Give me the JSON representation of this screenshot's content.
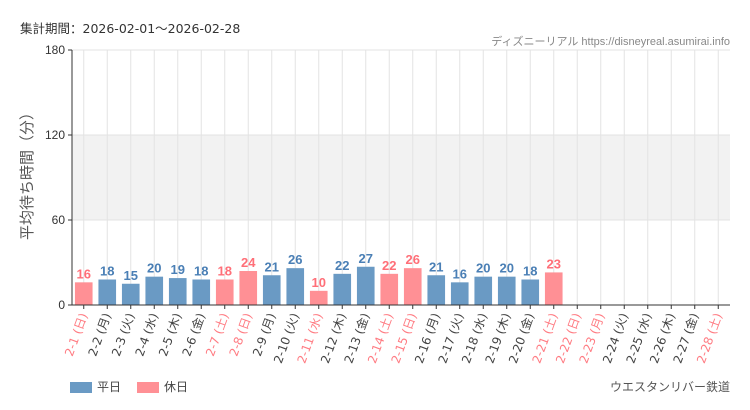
{
  "header": {
    "period": "集計期間：2026-02-01～2026-02-28",
    "credit": "ディズニーリアル https://disneyreal.asumirai.info"
  },
  "attraction": "ウエスタンリバー鉄道",
  "colors": {
    "weekday": "#6a9ac4",
    "holiday": "#ff9095",
    "weekday_text": "#4a7fb5",
    "holiday_text": "#ff6f78",
    "holiday_label": "#ff7b82",
    "band": "#f2f2f2"
  },
  "chart_data": {
    "type": "bar",
    "ylabel": "平均待ち時間（分）",
    "ylim": [
      0,
      180
    ],
    "yticks": [
      0,
      60,
      120,
      180
    ],
    "shaded_band": [
      60,
      120
    ],
    "grid": true,
    "legend": {
      "placement": "bottom-left",
      "entries": [
        {
          "name": "平日",
          "key": "weekday"
        },
        {
          "name": "休日",
          "key": "holiday"
        }
      ]
    },
    "categories": [
      "2-1 (日)",
      "2-2 (月)",
      "2-3 (火)",
      "2-4 (水)",
      "2-5 (木)",
      "2-6 (金)",
      "2-7 (土)",
      "2-8 (日)",
      "2-9 (月)",
      "2-10 (火)",
      "2-11 (水)",
      "2-12 (木)",
      "2-13 (金)",
      "2-14 (土)",
      "2-15 (日)",
      "2-16 (月)",
      "2-17 (火)",
      "2-18 (水)",
      "2-19 (木)",
      "2-20 (金)",
      "2-21 (土)",
      "2-22 (日)",
      "2-23 (月)",
      "2-24 (火)",
      "2-25 (水)",
      "2-26 (木)",
      "2-27 (金)",
      "2-28 (土)"
    ],
    "values": [
      16,
      18,
      15,
      20,
      19,
      18,
      18,
      24,
      21,
      26,
      10,
      22,
      27,
      22,
      26,
      21,
      16,
      20,
      20,
      18,
      23,
      null,
      null,
      null,
      null,
      null,
      null,
      null
    ],
    "holiday": [
      true,
      false,
      false,
      false,
      false,
      false,
      true,
      true,
      false,
      false,
      true,
      false,
      false,
      true,
      true,
      false,
      false,
      false,
      false,
      false,
      true,
      true,
      true,
      false,
      false,
      false,
      false,
      true
    ]
  }
}
